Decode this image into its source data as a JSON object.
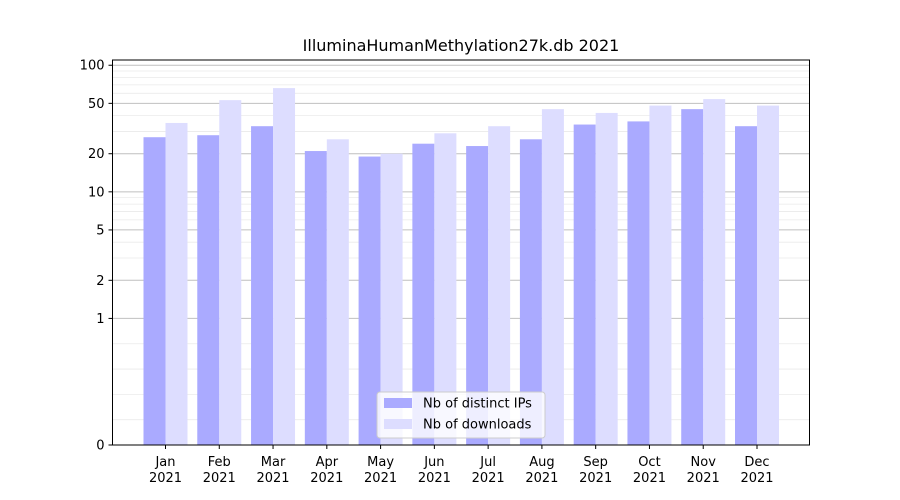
{
  "chart_data": {
    "type": "bar",
    "title": "IlluminaHumanMethylation27k.db 2021",
    "xlabel": "",
    "ylabel": "",
    "yscale": "symlog",
    "ylim": [
      0,
      110
    ],
    "yticks": [
      0,
      1,
      2,
      5,
      10,
      20,
      50,
      100
    ],
    "grid": true,
    "legend_position": "bottom-center",
    "categories": [
      "Jan\n2021",
      "Feb\n2021",
      "Mar\n2021",
      "Apr\n2021",
      "May\n2021",
      "Jun\n2021",
      "Jul\n2021",
      "Aug\n2021",
      "Sep\n2021",
      "Oct\n2021",
      "Nov\n2021",
      "Dec\n2021"
    ],
    "series": [
      {
        "name": "Nb of distinct IPs",
        "color": "#aaaaff",
        "values": [
          27,
          28,
          33,
          21,
          19,
          24,
          23,
          26,
          34,
          36,
          45,
          33
        ]
      },
      {
        "name": "Nb of downloads",
        "color": "#ddddff",
        "values": [
          35,
          53,
          66,
          26,
          20,
          29,
          33,
          45,
          42,
          48,
          54,
          48
        ]
      }
    ]
  }
}
